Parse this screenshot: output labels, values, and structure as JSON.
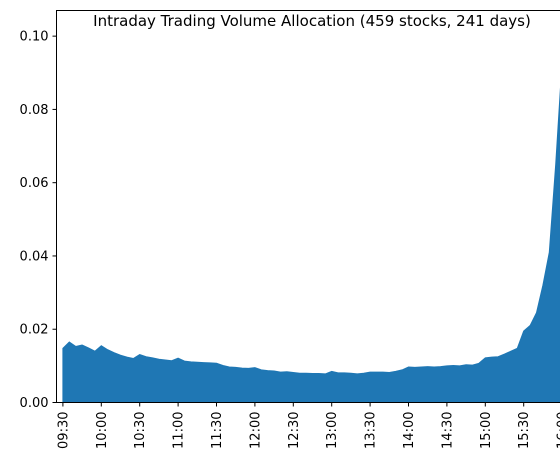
{
  "chart_data": {
    "type": "area",
    "title": "Intraday Trading Volume Allocation (459 stocks, 241 days)",
    "xlabel": "",
    "ylabel": "",
    "grid": false,
    "color": "#1f77b4",
    "x_ticks": [
      "09:30",
      "10:00",
      "10:30",
      "11:00",
      "11:30",
      "12:00",
      "12:30",
      "13:00",
      "13:30",
      "14:00",
      "14:30",
      "15:00",
      "15:30",
      "16:00"
    ],
    "y_ticks": [
      "0.00",
      "0.02",
      "0.04",
      "0.06",
      "0.08",
      "0.10"
    ],
    "ylim": [
      0,
      0.107
    ],
    "xlim": [
      "09:25",
      "16:05"
    ],
    "x": [
      "09:30",
      "09:35",
      "09:40",
      "09:45",
      "09:50",
      "09:55",
      "10:00",
      "10:05",
      "10:10",
      "10:15",
      "10:20",
      "10:25",
      "10:30",
      "10:35",
      "10:40",
      "10:45",
      "10:50",
      "10:55",
      "11:00",
      "11:05",
      "11:10",
      "11:15",
      "11:20",
      "11:25",
      "11:30",
      "11:35",
      "11:40",
      "11:45",
      "11:50",
      "11:55",
      "12:00",
      "12:05",
      "12:10",
      "12:15",
      "12:20",
      "12:25",
      "12:30",
      "12:35",
      "12:40",
      "12:45",
      "12:50",
      "12:55",
      "13:00",
      "13:05",
      "13:10",
      "13:15",
      "13:20",
      "13:25",
      "13:30",
      "13:35",
      "13:40",
      "13:45",
      "13:50",
      "13:55",
      "14:00",
      "14:05",
      "14:10",
      "14:15",
      "14:20",
      "14:25",
      "14:30",
      "14:35",
      "14:40",
      "14:45",
      "14:50",
      "14:55",
      "15:00",
      "15:05",
      "15:10",
      "15:15",
      "15:20",
      "15:25",
      "15:30",
      "15:35",
      "15:40",
      "15:45",
      "15:50",
      "15:55",
      "16:00"
    ],
    "y": [
      0.0148,
      0.0165,
      0.0153,
      0.0157,
      0.0149,
      0.014,
      0.0155,
      0.0144,
      0.0136,
      0.0129,
      0.0124,
      0.012,
      0.0131,
      0.0125,
      0.0122,
      0.0118,
      0.0116,
      0.0114,
      0.0121,
      0.0113,
      0.0111,
      0.011,
      0.0109,
      0.0108,
      0.0107,
      0.0101,
      0.0097,
      0.0096,
      0.0094,
      0.0093,
      0.0095,
      0.0089,
      0.0087,
      0.0086,
      0.0083,
      0.0084,
      0.0082,
      0.008,
      0.008,
      0.0079,
      0.0079,
      0.0078,
      0.0085,
      0.0081,
      0.0081,
      0.008,
      0.0078,
      0.008,
      0.0083,
      0.0083,
      0.0083,
      0.0082,
      0.0085,
      0.0089,
      0.0097,
      0.0096,
      0.0097,
      0.0098,
      0.0097,
      0.0098,
      0.01,
      0.0101,
      0.01,
      0.0103,
      0.0102,
      0.0107,
      0.0122,
      0.0124,
      0.0125,
      0.0132,
      0.014,
      0.0148,
      0.0195,
      0.021,
      0.0245,
      0.032,
      0.041,
      0.065,
      0.093
    ]
  }
}
